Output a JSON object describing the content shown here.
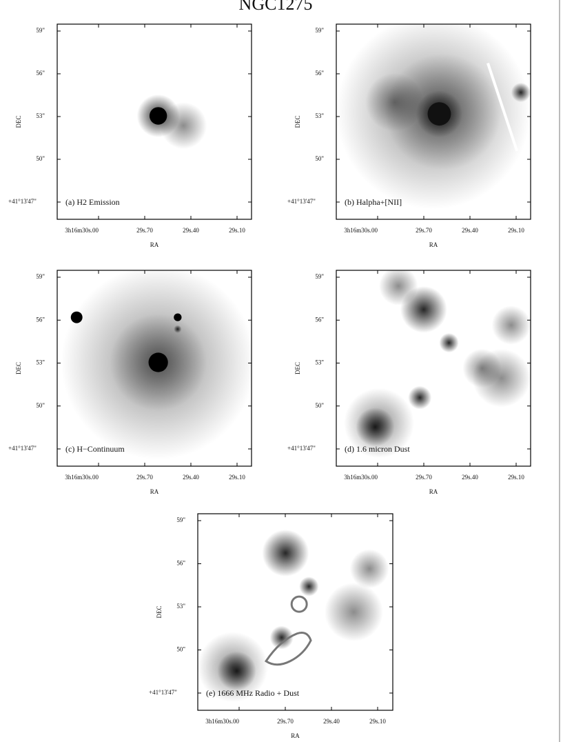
{
  "title": "NGC1275",
  "panels": [
    {
      "label": "(a) H2 Emission",
      "ylabel": "DEC",
      "xlabel": "RA",
      "yticks": [
        "59\"",
        "56\"",
        "53\"",
        "50\"",
        "+41°13'47\""
      ],
      "xticks": [
        "3h16m30s.00",
        "29s.70",
        "29s.40",
        "29s.10"
      ]
    },
    {
      "label": "(b) Halpha+[NII]",
      "ylabel": "DEC",
      "xlabel": "RA",
      "yticks": [
        "59\"",
        "56\"",
        "53\"",
        "50\"",
        "+41°13'47\""
      ],
      "xticks": [
        "3h16m30s.00",
        "29s.70",
        "29s.40",
        "29s.10"
      ]
    },
    {
      "label": "(c) H−Continuum",
      "ylabel": "DEC",
      "xlabel": "RA",
      "yticks": [
        "59\"",
        "56\"",
        "53\"",
        "50\"",
        "+41°13'47\""
      ],
      "xticks": [
        "3h16m30s.00",
        "29s.70",
        "29s.40",
        "29s.10"
      ]
    },
    {
      "label": "(d) 1.6 micron Dust",
      "ylabel": "DEC",
      "xlabel": "RA",
      "yticks": [
        "59\"",
        "56\"",
        "53\"",
        "50\"",
        "+41°13'47\""
      ],
      "xticks": [
        "3h16m30s.00",
        "29s.70",
        "29s.40",
        "29s.10"
      ]
    },
    {
      "label": "(e) 1666 MHz Radio + Dust",
      "ylabel": "DEC",
      "xlabel": "RA",
      "yticks": [
        "59\"",
        "56\"",
        "53\"",
        "50\"",
        "+41°13'47\""
      ],
      "xticks": [
        "3h16m30s.00",
        "29s.70",
        "29s.40",
        "29s.10"
      ]
    }
  ]
}
